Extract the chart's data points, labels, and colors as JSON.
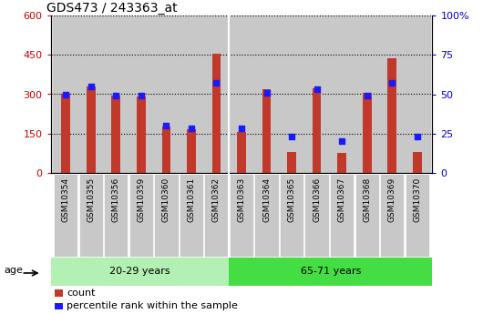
{
  "title": "GDS473 / 243363_at",
  "samples": [
    "GSM10354",
    "GSM10355",
    "GSM10356",
    "GSM10359",
    "GSM10360",
    "GSM10361",
    "GSM10362",
    "GSM10363",
    "GSM10364",
    "GSM10365",
    "GSM10366",
    "GSM10367",
    "GSM10368",
    "GSM10369",
    "GSM10370"
  ],
  "counts": [
    300,
    330,
    295,
    293,
    175,
    165,
    455,
    155,
    318,
    80,
    323,
    75,
    305,
    438,
    80
  ],
  "percentile": [
    50,
    55,
    49,
    49,
    30,
    28,
    57,
    28,
    51,
    23,
    53,
    20,
    49,
    57,
    23
  ],
  "group1_label": "20-29 years",
  "group2_label": "65-71 years",
  "group1_count": 7,
  "bar_color": "#c0392b",
  "dot_color": "#1a1aff",
  "group1_bg": "#b3f0b3",
  "group2_bg": "#44dd44",
  "cell_bg": "#c8c8c8",
  "age_label": "age",
  "legend1": "count",
  "legend2": "percentile rank within the sample",
  "ylim_left": [
    0,
    600
  ],
  "ylim_right": [
    0,
    100
  ],
  "yticks_left": [
    0,
    150,
    300,
    450,
    600
  ],
  "yticks_right": [
    0,
    25,
    50,
    75,
    100
  ],
  "left_color": "#cc0000",
  "right_color": "#0000cc",
  "bar_width": 0.35
}
